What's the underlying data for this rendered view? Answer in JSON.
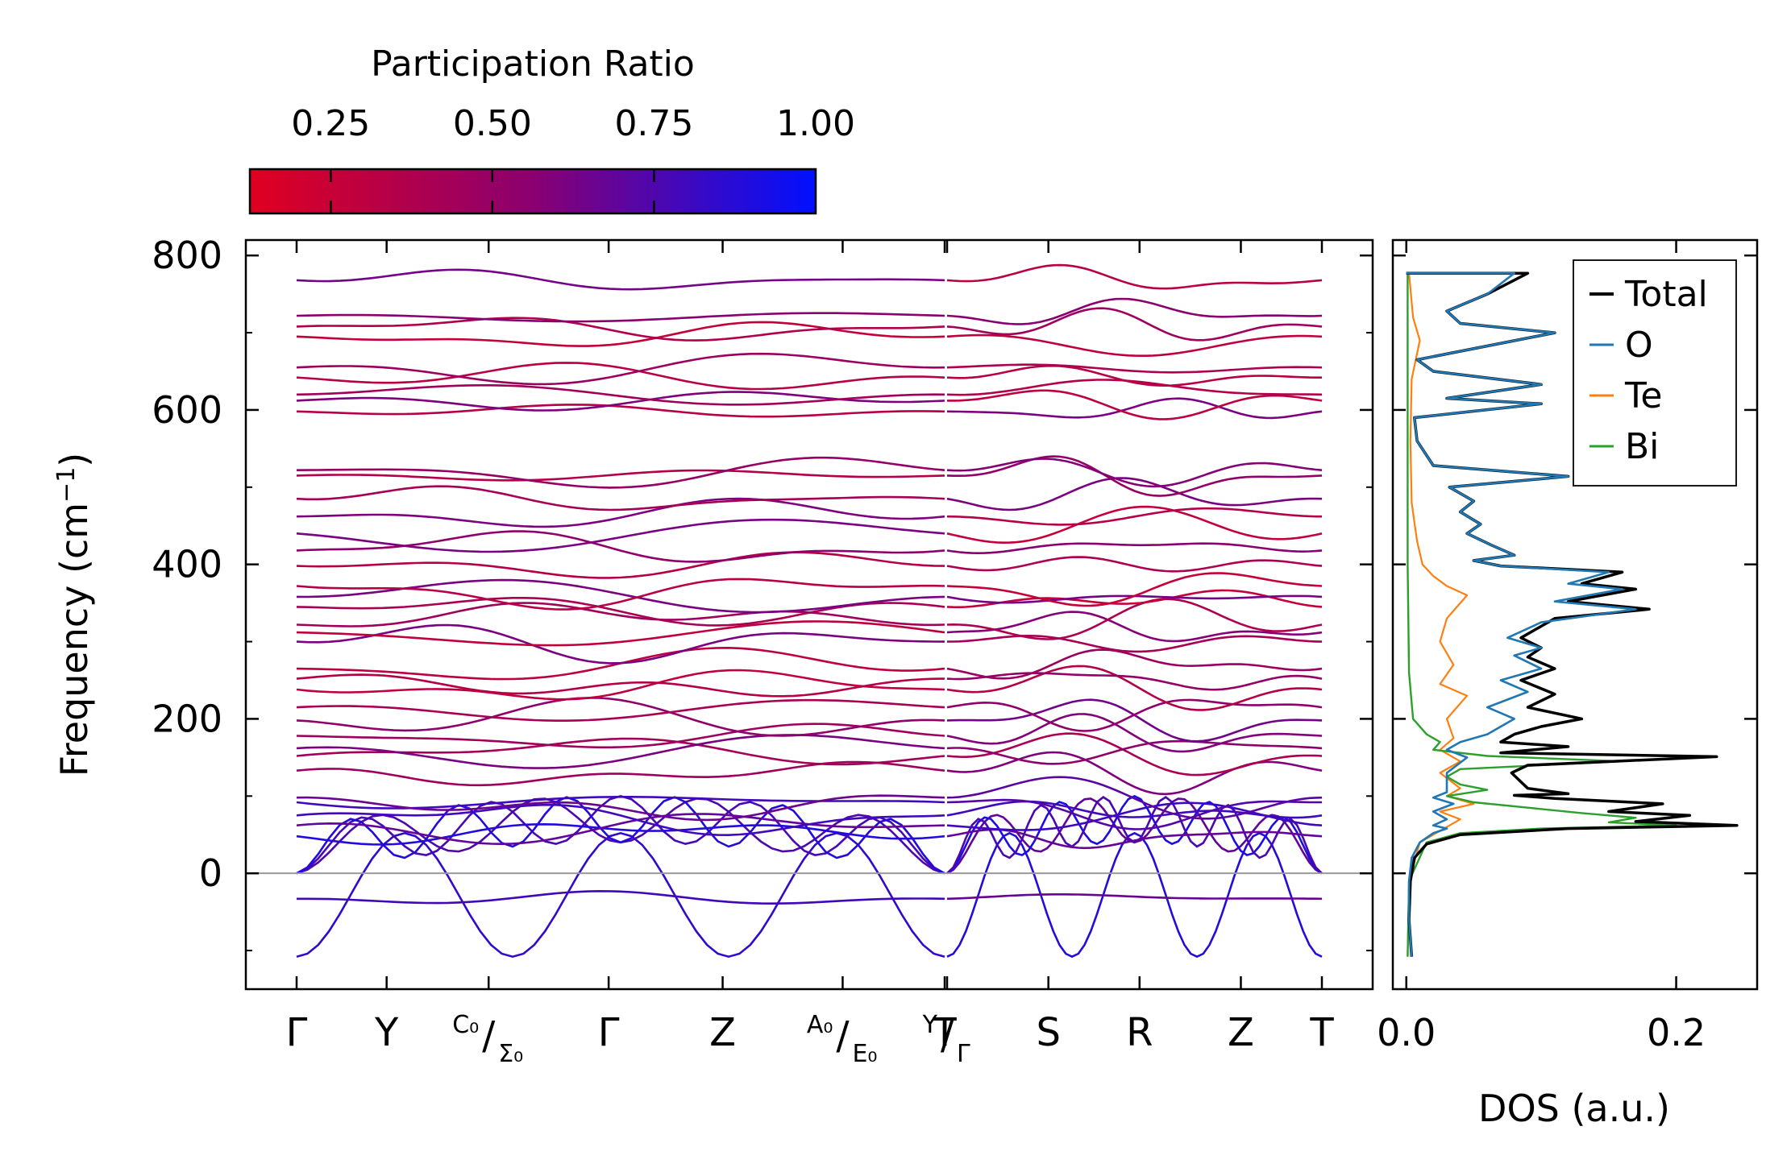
{
  "colors": {
    "ratio_low": "#e00020",
    "ratio_mid": "#8a0070",
    "ratio_high": "#0010ff",
    "total": "#000000",
    "o": "#1f77b4",
    "te": "#ff7f0e",
    "bi": "#2ca02c",
    "zero_line": "#999999"
  },
  "chart_data": [
    {
      "type": "line",
      "title": "",
      "xlabel": "",
      "ylabel": "Frequency (cm⁻¹)",
      "ylim": [
        -150,
        820
      ],
      "yticks": [
        "800",
        "600",
        "400",
        "200",
        "0"
      ],
      "ytick_values": [
        800,
        600,
        400,
        200,
        0
      ],
      "path_segments": [
        {
          "labels": [
            "Γ",
            "Y",
            "C₀/Σ₀",
            "Γ",
            "Z",
            "A₀/E₀",
            "T"
          ],
          "distance": [
            0,
            0.75,
            1.6,
            2.6,
            3.55,
            4.55,
            5.4
          ]
        },
        {
          "labels": [
            "Y/Γ",
            "S",
            "R",
            "Z",
            "T"
          ],
          "distance": [
            0,
            1.0,
            1.9,
            2.9,
            3.7
          ]
        }
      ],
      "xtick_labels": [
        {
          "main": "Γ"
        },
        {
          "main": "Y"
        },
        {
          "sup": "C₀",
          "slash": "/",
          "sub": "Σ₀"
        },
        {
          "main": "Γ"
        },
        {
          "main": "Z"
        },
        {
          "sup": "A₀",
          "slash": "/",
          "sub": "E₀"
        },
        {
          "main": "T"
        },
        {
          "sup": "Y",
          "slash": "/",
          "sub": "Γ"
        },
        {
          "main": "S"
        },
        {
          "main": "R"
        },
        {
          "main": "Z"
        },
        {
          "main": "T"
        }
      ],
      "band_anchor_frequencies": [
        -108,
        -33,
        0,
        0,
        0,
        48,
        62,
        75,
        92,
        98,
        133,
        152,
        162,
        178,
        198,
        215,
        238,
        252,
        265,
        300,
        312,
        322,
        345,
        358,
        372,
        398,
        418,
        440,
        462,
        485,
        515,
        522,
        598,
        612,
        620,
        642,
        655,
        695,
        708,
        722,
        768
      ],
      "colorbar": {
        "label": "Participation Ratio",
        "ticks": [
          "0.25",
          "0.50",
          "0.75",
          "1.00"
        ],
        "tick_values": [
          0.25,
          0.5,
          0.75,
          1.0
        ],
        "range": [
          0.125,
          1.0
        ]
      }
    },
    {
      "type": "line",
      "xlabel": "DOS (a.u.)",
      "xlim": [
        -0.01,
        0.26
      ],
      "xticks": [
        "0.0",
        "0.2"
      ],
      "xtick_values": [
        0.0,
        0.2
      ],
      "ylim": [
        -150,
        820
      ],
      "legend_position": "top-right",
      "series": [
        {
          "name": "Total",
          "key": "total",
          "points": [
            [
              0.004,
              -108
            ],
            [
              0.002,
              -60
            ],
            [
              0.003,
              -10
            ],
            [
              0.006,
              20
            ],
            [
              0.015,
              38
            ],
            [
              0.04,
              50
            ],
            [
              0.12,
              58
            ],
            [
              0.245,
              62
            ],
            [
              0.17,
              67
            ],
            [
              0.21,
              75
            ],
            [
              0.15,
              80
            ],
            [
              0.19,
              90
            ],
            [
              0.11,
              97
            ],
            [
              0.08,
              101
            ],
            [
              0.12,
              103
            ],
            [
              0.09,
              110
            ],
            [
              0.078,
              130
            ],
            [
              0.09,
              140
            ],
            [
              0.23,
              151
            ],
            [
              0.07,
              156
            ],
            [
              0.12,
              164
            ],
            [
              0.07,
              170
            ],
            [
              0.08,
              180
            ],
            [
              0.1,
              190
            ],
            [
              0.13,
              200
            ],
            [
              0.09,
              215
            ],
            [
              0.11,
              232
            ],
            [
              0.085,
              250
            ],
            [
              0.11,
              265
            ],
            [
              0.09,
              280
            ],
            [
              0.1,
              292
            ],
            [
              0.085,
              305
            ],
            [
              0.11,
              330
            ],
            [
              0.18,
              342
            ],
            [
              0.12,
              352
            ],
            [
              0.17,
              368
            ],
            [
              0.13,
              375
            ],
            [
              0.16,
              390
            ],
            [
              0.07,
              398
            ],
            [
              0.05,
              405
            ],
            [
              0.08,
              412
            ],
            [
              0.063,
              425
            ],
            [
              0.045,
              440
            ],
            [
              0.055,
              452
            ],
            [
              0.04,
              468
            ],
            [
              0.05,
              482
            ],
            [
              0.032,
              500
            ],
            [
              0.12,
              514
            ],
            [
              0.02,
              528
            ],
            [
              0.008,
              560
            ],
            [
              0.006,
              590
            ],
            [
              0.1,
              608
            ],
            [
              0.03,
              615
            ],
            [
              0.1,
              633
            ],
            [
              0.02,
              650
            ],
            [
              0.008,
              665
            ],
            [
              0.11,
              700
            ],
            [
              0.04,
              712
            ],
            [
              0.03,
              728
            ],
            [
              0.06,
              750
            ],
            [
              0.09,
              777
            ],
            [
              0.0,
              777
            ]
          ]
        },
        {
          "name": "O",
          "key": "o",
          "points": [
            [
              0.004,
              -108
            ],
            [
              0.002,
              -60
            ],
            [
              0.002,
              -10
            ],
            [
              0.004,
              20
            ],
            [
              0.01,
              40
            ],
            [
              0.02,
              52
            ],
            [
              0.03,
              58
            ],
            [
              0.02,
              62
            ],
            [
              0.03,
              70
            ],
            [
              0.02,
              80
            ],
            [
              0.035,
              90
            ],
            [
              0.02,
              98
            ],
            [
              0.03,
              105
            ],
            [
              0.03,
              130
            ],
            [
              0.045,
              150
            ],
            [
              0.03,
              160
            ],
            [
              0.04,
              170
            ],
            [
              0.06,
              180
            ],
            [
              0.08,
              200
            ],
            [
              0.06,
              215
            ],
            [
              0.09,
              235
            ],
            [
              0.07,
              250
            ],
            [
              0.1,
              265
            ],
            [
              0.08,
              282
            ],
            [
              0.1,
              292
            ],
            [
              0.075,
              305
            ],
            [
              0.1,
              325
            ],
            [
              0.17,
              342
            ],
            [
              0.11,
              352
            ],
            [
              0.16,
              368
            ],
            [
              0.12,
              375
            ],
            [
              0.15,
              390
            ],
            [
              0.07,
              398
            ],
            [
              0.05,
              405
            ],
            [
              0.08,
              412
            ],
            [
              0.063,
              425
            ],
            [
              0.045,
              440
            ],
            [
              0.055,
              452
            ],
            [
              0.04,
              468
            ],
            [
              0.05,
              482
            ],
            [
              0.032,
              500
            ],
            [
              0.12,
              514
            ],
            [
              0.02,
              528
            ],
            [
              0.008,
              560
            ],
            [
              0.006,
              590
            ],
            [
              0.1,
              608
            ],
            [
              0.03,
              615
            ],
            [
              0.1,
              633
            ],
            [
              0.02,
              650
            ],
            [
              0.008,
              665
            ],
            [
              0.11,
              700
            ],
            [
              0.04,
              712
            ],
            [
              0.03,
              728
            ],
            [
              0.06,
              750
            ],
            [
              0.08,
              777
            ],
            [
              0.0,
              777
            ]
          ]
        },
        {
          "name": "Te",
          "key": "te",
          "points": [
            [
              0.001,
              -108
            ],
            [
              0.002,
              -10
            ],
            [
              0.01,
              40
            ],
            [
              0.03,
              60
            ],
            [
              0.04,
              70
            ],
            [
              0.025,
              80
            ],
            [
              0.05,
              90
            ],
            [
              0.03,
              100
            ],
            [
              0.04,
              110
            ],
            [
              0.025,
              130
            ],
            [
              0.04,
              145
            ],
            [
              0.025,
              160
            ],
            [
              0.035,
              175
            ],
            [
              0.03,
              200
            ],
            [
              0.045,
              230
            ],
            [
              0.025,
              245
            ],
            [
              0.035,
              270
            ],
            [
              0.025,
              300
            ],
            [
              0.03,
              330
            ],
            [
              0.045,
              360
            ],
            [
              0.03,
              372
            ],
            [
              0.02,
              385
            ],
            [
              0.012,
              400
            ],
            [
              0.008,
              430
            ],
            [
              0.004,
              480
            ],
            [
              0.003,
              560
            ],
            [
              0.004,
              640
            ],
            [
              0.01,
              690
            ],
            [
              0.005,
              720
            ],
            [
              0.002,
              777
            ]
          ]
        },
        {
          "name": "Bi",
          "key": "bi",
          "points": [
            [
              0.001,
              -108
            ],
            [
              0.002,
              -10
            ],
            [
              0.015,
              40
            ],
            [
              0.04,
              52
            ],
            [
              0.1,
              58
            ],
            [
              0.2,
              62
            ],
            [
              0.15,
              66
            ],
            [
              0.17,
              72
            ],
            [
              0.13,
              78
            ],
            [
              0.09,
              85
            ],
            [
              0.05,
              92
            ],
            [
              0.03,
              100
            ],
            [
              0.06,
              108
            ],
            [
              0.04,
              115
            ],
            [
              0.03,
              125
            ],
            [
              0.04,
              135
            ],
            [
              0.16,
              145
            ],
            [
              0.06,
              152
            ],
            [
              0.02,
              160
            ],
            [
              0.025,
              170
            ],
            [
              0.015,
              180
            ],
            [
              0.005,
              200
            ],
            [
              0.002,
              260
            ],
            [
              0.001,
              400
            ],
            [
              0.001,
              777
            ]
          ]
        }
      ]
    }
  ]
}
